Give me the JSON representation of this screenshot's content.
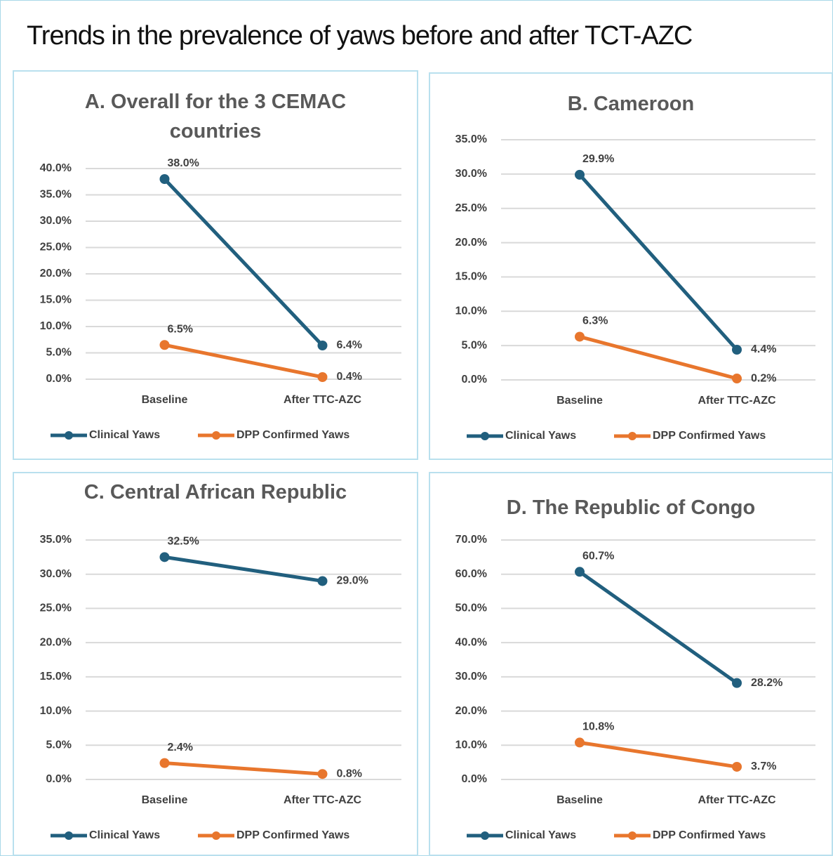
{
  "title": "Trends in the prevalence of yaws before and after TCT-AZC",
  "chart_data": [
    {
      "type": "line",
      "title": "A. Overall for the 3 CEMAC countries",
      "categories": [
        "Baseline",
        "After TTC-AZC"
      ],
      "series": [
        {
          "name": "Clinical Yaws",
          "color": "#215f7e",
          "values": [
            38.0,
            6.4
          ],
          "value_labels": [
            "38.0%",
            "6.4%"
          ]
        },
        {
          "name": "DPP Confirmed Yaws",
          "color": "#e8762d",
          "values": [
            6.5,
            0.4
          ],
          "value_labels": [
            "6.5%",
            "0.4%"
          ]
        }
      ],
      "ylim": [
        0,
        40
      ],
      "yticks": [
        {
          "value": 0,
          "label": "0.0%"
        },
        {
          "value": 5,
          "label": "5.0%"
        },
        {
          "value": 10,
          "label": "10.0%"
        },
        {
          "value": 15,
          "label": "15.0%"
        },
        {
          "value": 20,
          "label": "20.0%"
        },
        {
          "value": 25,
          "label": "25.0%"
        },
        {
          "value": 30,
          "label": "30.0%"
        },
        {
          "value": 35,
          "label": "35.0%"
        },
        {
          "value": 40,
          "label": "40.0%"
        }
      ],
      "grid": true,
      "legend": "bottom"
    },
    {
      "type": "line",
      "title": "B. Cameroon",
      "categories": [
        "Baseline",
        "After TTC-AZC"
      ],
      "series": [
        {
          "name": "Clinical Yaws",
          "color": "#215f7e",
          "values": [
            29.9,
            4.4
          ],
          "value_labels": [
            "29.9%",
            "4.4%"
          ]
        },
        {
          "name": "DPP Confirmed Yaws",
          "color": "#e8762d",
          "values": [
            6.3,
            0.2
          ],
          "value_labels": [
            "6.3%",
            "0.2%"
          ]
        }
      ],
      "ylim": [
        0,
        35
      ],
      "yticks": [
        {
          "value": 0,
          "label": "0.0%"
        },
        {
          "value": 5,
          "label": "5.0%"
        },
        {
          "value": 10,
          "label": "10.0%"
        },
        {
          "value": 15,
          "label": "15.0%"
        },
        {
          "value": 20,
          "label": "20.0%"
        },
        {
          "value": 25,
          "label": "25.0%"
        },
        {
          "value": 30,
          "label": "30.0%"
        },
        {
          "value": 35,
          "label": "35.0%"
        }
      ],
      "grid": true,
      "legend": "bottom"
    },
    {
      "type": "line",
      "title": "C. Central African Republic",
      "categories": [
        "Baseline",
        "After TTC-AZC"
      ],
      "series": [
        {
          "name": "Clinical Yaws",
          "color": "#215f7e",
          "values": [
            32.5,
            29.0
          ],
          "value_labels": [
            "32.5%",
            "29.0%"
          ]
        },
        {
          "name": "DPP Confirmed Yaws",
          "color": "#e8762d",
          "values": [
            2.4,
            0.8
          ],
          "value_labels": [
            "2.4%",
            "0.8%"
          ]
        }
      ],
      "ylim": [
        0,
        35
      ],
      "yticks": [
        {
          "value": 0,
          "label": "0.0%"
        },
        {
          "value": 5,
          "label": "5.0%"
        },
        {
          "value": 10,
          "label": "10.0%"
        },
        {
          "value": 15,
          "label": "15.0%"
        },
        {
          "value": 20,
          "label": "20.0%"
        },
        {
          "value": 25,
          "label": "25.0%"
        },
        {
          "value": 30,
          "label": "30.0%"
        },
        {
          "value": 35,
          "label": "35.0%"
        }
      ],
      "grid": true,
      "legend": "bottom"
    },
    {
      "type": "line",
      "title": "D. The Republic of Congo",
      "categories": [
        "Baseline",
        "After TTC-AZC"
      ],
      "series": [
        {
          "name": "Clinical Yaws",
          "color": "#215f7e",
          "values": [
            60.7,
            28.2
          ],
          "value_labels": [
            "60.7%",
            "28.2%"
          ]
        },
        {
          "name": "DPP Confirmed Yaws",
          "color": "#e8762d",
          "values": [
            10.8,
            3.7
          ],
          "value_labels": [
            "10.8%",
            "3.7%"
          ]
        }
      ],
      "ylim": [
        0,
        70
      ],
      "yticks": [
        {
          "value": 0,
          "label": "0.0%"
        },
        {
          "value": 10,
          "label": "10.0%"
        },
        {
          "value": 20,
          "label": "20.0%"
        },
        {
          "value": 30,
          "label": "30.0%"
        },
        {
          "value": 40,
          "label": "40.0%"
        },
        {
          "value": 50,
          "label": "50.0%"
        },
        {
          "value": 60,
          "label": "60.0%"
        },
        {
          "value": 70,
          "label": "70.0%"
        }
      ],
      "grid": true,
      "legend": "bottom"
    }
  ]
}
